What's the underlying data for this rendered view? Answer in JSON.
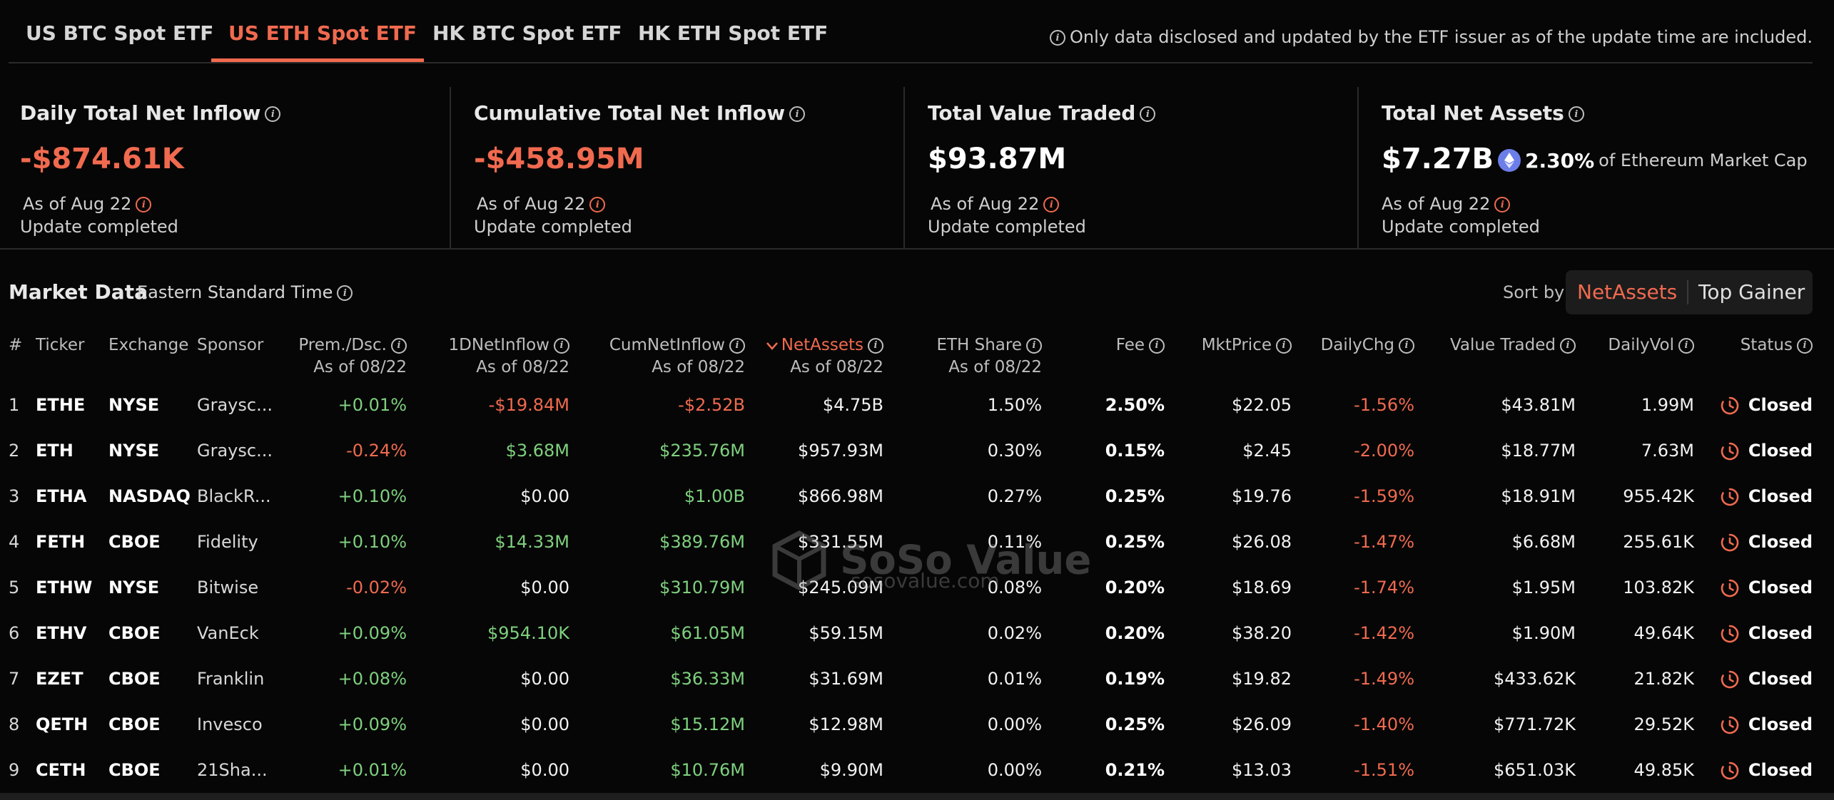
{
  "tabs": [
    {
      "label": "US BTC Spot ETF",
      "active": false
    },
    {
      "label": "US ETH Spot ETF",
      "active": true
    },
    {
      "label": "HK BTC Spot ETF",
      "active": false
    },
    {
      "label": "HK ETH Spot ETF",
      "active": false
    }
  ],
  "notice": "Only data disclosed and updated by the ETF issuer as of the update time are included.",
  "cards": [
    {
      "title": "Daily Total Net Inflow",
      "value": "-$874.61K",
      "as_of": "As of Aug 22",
      "status": "Update completed"
    },
    {
      "title": "Cumulative Total Net Inflow",
      "value": "-$458.95M",
      "as_of": "As of Aug 22",
      "status": "Update completed"
    },
    {
      "title": "Total Value Traded",
      "value": "$93.87M",
      "as_of": "As of Aug 22",
      "status": "Update completed"
    },
    {
      "title": "Total Net Assets",
      "value": "$7.27B",
      "market_cap_pct": "2.30%",
      "market_cap_label": "of Ethereum Market Cap",
      "as_of": "As of Aug 22",
      "status": "Update completed"
    }
  ],
  "market": {
    "title": "Market Data",
    "timezone": "Eastern Standard Time",
    "sort_label": "Sort by",
    "sort_options": [
      "NetAssets",
      "Top Gainer"
    ],
    "sort_active": "NetAssets"
  },
  "columns": {
    "num": "#",
    "ticker": "Ticker",
    "exchange": "Exchange",
    "sponsor": "Sponsor",
    "prem": "Prem./Dsc.",
    "prem_sub": "As of 08/22",
    "inflow": "1DNetInflow",
    "inflow_sub": "As of 08/22",
    "cum": "CumNetInflow",
    "cum_sub": "As of 08/22",
    "assets": "NetAssets",
    "assets_sub": "As of 08/22",
    "share": "ETH Share",
    "share_sub": "As of 08/22",
    "fee": "Fee",
    "price": "MktPrice",
    "chg": "DailyChg",
    "traded": "Value Traded",
    "vol": "DailyVol",
    "status": "Status"
  },
  "rows": [
    {
      "num": "1",
      "ticker": "ETHE",
      "exchange": "NYSE",
      "sponsor": "Graysc...",
      "prem": "+0.01%",
      "inflow": "-$19.84M",
      "cum": "-$2.52B",
      "assets": "$4.75B",
      "share": "1.50%",
      "fee": "2.50%",
      "price": "$22.05",
      "chg": "-1.56%",
      "traded": "$43.81M",
      "vol": "1.99M",
      "status": "Closed"
    },
    {
      "num": "2",
      "ticker": "ETH",
      "exchange": "NYSE",
      "sponsor": "Graysc...",
      "prem": "-0.24%",
      "inflow": "$3.68M",
      "cum": "$235.76M",
      "assets": "$957.93M",
      "share": "0.30%",
      "fee": "0.15%",
      "price": "$2.45",
      "chg": "-2.00%",
      "traded": "$18.77M",
      "vol": "7.63M",
      "status": "Closed"
    },
    {
      "num": "3",
      "ticker": "ETHA",
      "exchange": "NASDAQ",
      "sponsor": "BlackR...",
      "prem": "+0.10%",
      "inflow": "$0.00",
      "cum": "$1.00B",
      "assets": "$866.98M",
      "share": "0.27%",
      "fee": "0.25%",
      "price": "$19.76",
      "chg": "-1.59%",
      "traded": "$18.91M",
      "vol": "955.42K",
      "status": "Closed"
    },
    {
      "num": "4",
      "ticker": "FETH",
      "exchange": "CBOE",
      "sponsor": "Fidelity",
      "prem": "+0.10%",
      "inflow": "$14.33M",
      "cum": "$389.76M",
      "assets": "$331.55M",
      "share": "0.11%",
      "fee": "0.25%",
      "price": "$26.08",
      "chg": "-1.47%",
      "traded": "$6.68M",
      "vol": "255.61K",
      "status": "Closed"
    },
    {
      "num": "5",
      "ticker": "ETHW",
      "exchange": "NYSE",
      "sponsor": "Bitwise",
      "prem": "-0.02%",
      "inflow": "$0.00",
      "cum": "$310.79M",
      "assets": "$245.09M",
      "share": "0.08%",
      "fee": "0.20%",
      "price": "$18.69",
      "chg": "-1.74%",
      "traded": "$1.95M",
      "vol": "103.82K",
      "status": "Closed"
    },
    {
      "num": "6",
      "ticker": "ETHV",
      "exchange": "CBOE",
      "sponsor": "VanEck",
      "prem": "+0.09%",
      "inflow": "$954.10K",
      "cum": "$61.05M",
      "assets": "$59.15M",
      "share": "0.02%",
      "fee": "0.20%",
      "price": "$38.20",
      "chg": "-1.42%",
      "traded": "$1.90M",
      "vol": "49.64K",
      "status": "Closed"
    },
    {
      "num": "7",
      "ticker": "EZET",
      "exchange": "CBOE",
      "sponsor": "Franklin",
      "prem": "+0.08%",
      "inflow": "$0.00",
      "cum": "$36.33M",
      "assets": "$31.69M",
      "share": "0.01%",
      "fee": "0.19%",
      "price": "$19.82",
      "chg": "-1.49%",
      "traded": "$433.62K",
      "vol": "21.82K",
      "status": "Closed"
    },
    {
      "num": "8",
      "ticker": "QETH",
      "exchange": "CBOE",
      "sponsor": "Invesco",
      "prem": "+0.09%",
      "inflow": "$0.00",
      "cum": "$15.12M",
      "assets": "$12.98M",
      "share": "0.00%",
      "fee": "0.25%",
      "price": "$26.09",
      "chg": "-1.40%",
      "traded": "$771.72K",
      "vol": "29.52K",
      "status": "Closed"
    },
    {
      "num": "9",
      "ticker": "CETH",
      "exchange": "CBOE",
      "sponsor": "21Sha...",
      "prem": "+0.01%",
      "inflow": "$0.00",
      "cum": "$10.76M",
      "assets": "$9.90M",
      "share": "0.00%",
      "fee": "0.21%",
      "price": "$13.03",
      "chg": "-1.51%",
      "traded": "$651.03K",
      "vol": "49.85K",
      "status": "Closed"
    }
  ],
  "watermark": {
    "brand": "SoSo Value",
    "site": "sosovalue.com"
  },
  "colors": {
    "accent": "#f06a4f",
    "positive": "#7ed07e",
    "negative": "#f06a4f",
    "background": "#060606",
    "eth": "#6c7ee8"
  }
}
